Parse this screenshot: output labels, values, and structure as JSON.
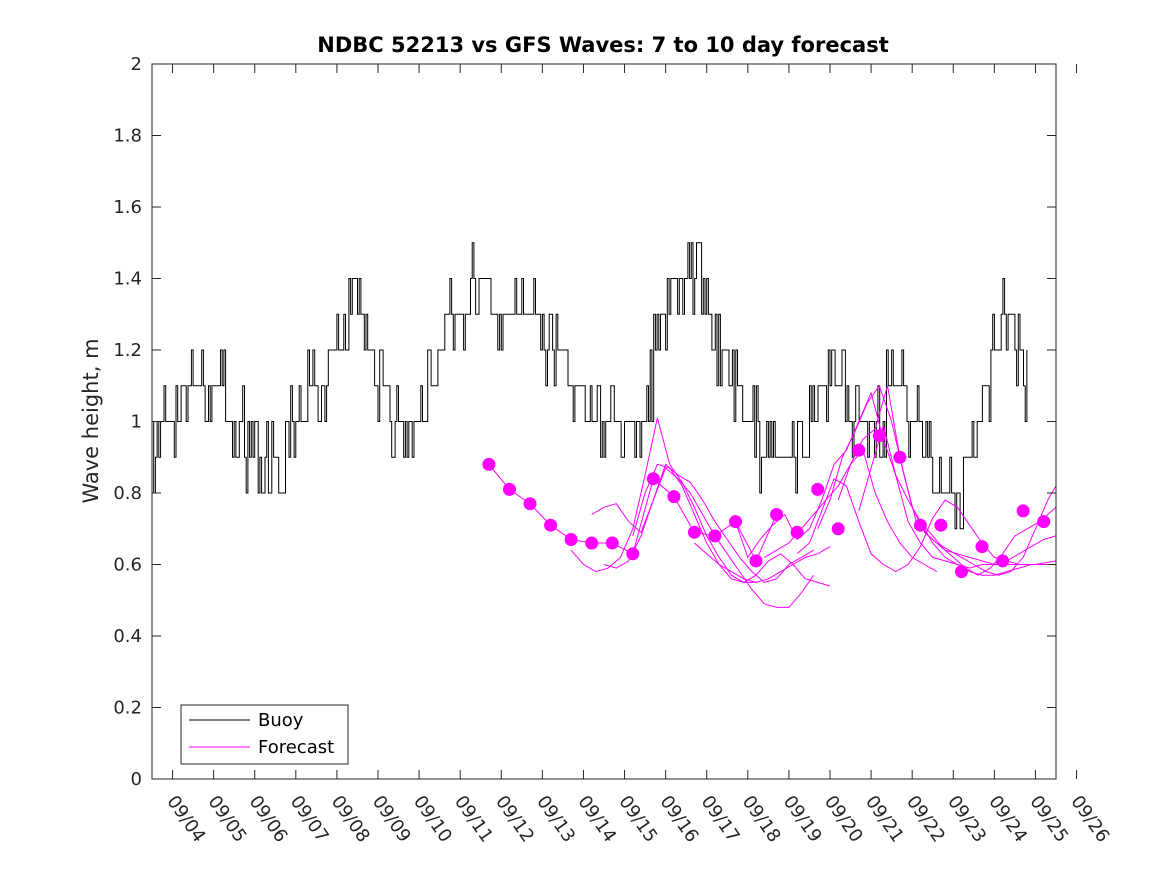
{
  "chart_data": {
    "type": "line",
    "title": "NDBC 52213 vs GFS Waves: 7 to 10 day forecast",
    "xlabel": "",
    "ylabel": "Wave height, m",
    "ylim": [
      0,
      2
    ],
    "yticks": [
      0,
      0.2,
      0.4,
      0.6,
      0.8,
      1,
      1.2,
      1.4,
      1.6,
      1.8,
      2
    ],
    "ytick_labels": [
      "0",
      "0.2",
      "0.4",
      "0.6",
      "0.8",
      "1",
      "1.2",
      "1.4",
      "1.6",
      "1.8",
      "2"
    ],
    "xlim_days": [
      -0.5,
      21.5
    ],
    "x_tick_labels": [
      "09/04",
      "09/05",
      "09/06",
      "09/07",
      "09/08",
      "09/09",
      "09/10",
      "09/11",
      "09/12",
      "09/13",
      "09/14",
      "09/15",
      "09/16",
      "09/17",
      "09/18",
      "09/19",
      "09/20",
      "09/21",
      "09/22",
      "09/23",
      "09/24",
      "09/25",
      "09/26"
    ],
    "x_unit": "days since 09/04 00:00",
    "legend": {
      "position": "bottom-left",
      "entries": [
        "Buoy",
        "Forecast"
      ]
    },
    "colors": {
      "buoy": "#000000",
      "forecast": "#ff00ff",
      "axes": "#262626"
    },
    "series": [
      {
        "name": "Buoy",
        "color": "#000000",
        "step": 0.1,
        "x": [
          -0.5,
          0,
          0.5,
          1,
          1.5,
          2,
          2.5,
          3,
          3.5,
          4,
          4.5,
          5,
          5.5,
          6,
          6.5,
          7,
          7.5,
          8,
          8.5,
          9,
          9.5,
          10,
          10.5,
          11,
          11.5,
          12,
          12.5,
          13,
          13.5,
          14,
          14.5,
          15,
          15.5,
          16,
          16.5,
          17,
          17.5,
          18,
          18.5,
          19,
          19.5,
          20,
          20.3,
          20.5,
          20.8
        ],
        "values": [
          0.9,
          1.0,
          1.1,
          1.1,
          1.0,
          0.9,
          0.85,
          1.0,
          1.1,
          1.2,
          1.3,
          1.1,
          1.0,
          0.95,
          1.2,
          1.3,
          1.4,
          1.3,
          1.3,
          1.25,
          1.2,
          1.05,
          1.0,
          0.95,
          1.05,
          1.35,
          1.45,
          1.3,
          1.15,
          1.0,
          0.9,
          0.85,
          1.0,
          1.15,
          1.0,
          0.95,
          1.1,
          1.0,
          0.85,
          0.8,
          0.9,
          1.2,
          1.3,
          1.25,
          1.1
        ]
      },
      {
        "name": "Forecast",
        "color": "#ff00ff",
        "runs": [
          {
            "x": [
              7.7,
              8.2,
              8.7,
              9.2,
              9.7,
              10.2,
              10.7,
              11.2,
              11.7,
              12.2,
              12.7,
              13.2,
              13.7,
              14.2,
              14.7
            ],
            "values": [
              0.88,
              0.81,
              0.77,
              0.71,
              0.67,
              0.66,
              0.66,
              0.63,
              0.84,
              0.79,
              0.69,
              0.68,
              0.72,
              0.61,
              0.74
            ]
          },
          {
            "x": [
              10.2,
              10.5,
              10.8,
              11.1,
              11.4,
              11.7,
              12.0,
              12.3,
              12.6,
              12.9,
              13.2,
              13.5,
              13.8,
              14.1,
              14.4,
              14.7,
              15.0,
              15.3,
              15.6
            ],
            "values": [
              0.74,
              0.76,
              0.77,
              0.72,
              0.69,
              0.78,
              0.88,
              0.85,
              0.83,
              0.78,
              0.72,
              0.67,
              0.62,
              0.58,
              0.55,
              0.56,
              0.6,
              0.62,
              0.64
            ]
          },
          {
            "x": [
              10.5,
              10.8,
              11.1,
              11.4,
              11.7,
              12.0,
              12.3,
              12.6,
              12.9,
              13.2,
              13.5,
              13.8,
              14.1,
              14.4,
              14.7,
              15.0,
              15.3,
              15.6
            ],
            "values": [
              0.6,
              0.59,
              0.61,
              0.68,
              0.78,
              0.87,
              0.84,
              0.8,
              0.74,
              0.68,
              0.63,
              0.58,
              0.53,
              0.49,
              0.48,
              0.48,
              0.52,
              0.57
            ]
          },
          {
            "x": [
              9.7,
              10.0,
              10.3,
              10.6,
              10.9,
              11.2,
              11.5,
              11.8,
              12.1,
              12.4,
              12.7,
              13.0,
              13.3,
              13.6,
              13.9,
              14.2
            ],
            "values": [
              0.64,
              0.6,
              0.58,
              0.59,
              0.62,
              0.7,
              0.85,
              1.01,
              0.88,
              0.83,
              0.76,
              0.68,
              0.62,
              0.57,
              0.55,
              0.55
            ]
          },
          {
            "x": [
              11.2,
              11.5,
              11.8,
              12.1,
              12.4,
              12.7,
              13.0,
              13.3,
              13.6,
              13.9,
              14.2,
              14.5,
              14.8,
              15.1,
              15.4,
              15.7,
              16.0
            ],
            "values": [
              0.68,
              0.8,
              0.88,
              0.87,
              0.82,
              0.74,
              0.66,
              0.6,
              0.56,
              0.55,
              0.57,
              0.61,
              0.63,
              0.6,
              0.56,
              0.55,
              0.54
            ]
          },
          {
            "x": [
              13.7,
              14.0,
              14.3,
              14.6,
              14.9,
              15.2,
              15.5,
              15.8,
              16.1,
              16.4,
              16.7,
              17.0,
              17.3,
              17.6,
              17.9,
              18.2,
              18.5,
              18.8,
              19.1,
              19.4,
              19.7,
              20.0,
              20.3,
              20.6,
              20.9,
              21.2,
              21.5
            ],
            "values": [
              0.72,
              0.62,
              0.67,
              0.71,
              0.74,
              0.67,
              0.7,
              0.78,
              0.88,
              0.92,
              1.0,
              1.08,
              0.95,
              0.85,
              0.72,
              0.66,
              0.62,
              0.61,
              0.6,
              0.59,
              0.6,
              0.6,
              0.6,
              0.6,
              0.6,
              0.6,
              0.6
            ]
          },
          {
            "x": [
              15.7,
              16.0,
              16.3,
              16.6,
              16.9,
              17.2,
              17.5,
              17.8,
              18.1,
              18.4,
              18.7,
              19.0,
              19.3,
              19.6,
              19.9,
              20.2,
              20.5,
              20.8,
              21.1,
              21.4,
              21.5
            ],
            "values": [
              0.7,
              0.78,
              0.9,
              0.97,
              1.05,
              1.1,
              1.0,
              0.85,
              0.72,
              0.68,
              0.65,
              0.62,
              0.59,
              0.57,
              0.59,
              0.63,
              0.68,
              0.7,
              0.72,
              0.75,
              0.76
            ]
          },
          {
            "x": [
              16.2,
              16.5,
              16.8,
              17.1,
              17.4,
              17.7,
              18.0,
              18.3,
              18.6,
              18.9,
              19.2,
              19.5,
              19.8,
              20.1,
              20.4,
              20.7,
              21.0,
              21.3,
              21.5
            ],
            "values": [
              0.78,
              0.88,
              0.95,
              0.98,
              1.1,
              0.9,
              0.76,
              0.69,
              0.66,
              0.64,
              0.62,
              0.6,
              0.58,
              0.57,
              0.58,
              0.62,
              0.7,
              0.78,
              0.82
            ]
          },
          {
            "x": [
              16.7,
              17.0,
              17.3,
              17.6,
              17.9,
              18.2,
              18.5,
              18.8,
              19.1,
              19.4,
              19.7,
              20.0,
              20.3,
              20.6,
              20.9,
              21.2,
              21.5
            ],
            "values": [
              0.75,
              0.87,
              0.99,
              0.85,
              0.78,
              0.72,
              0.68,
              0.64,
              0.63,
              0.62,
              0.61,
              0.6,
              0.61,
              0.63,
              0.65,
              0.67,
              0.68
            ]
          },
          {
            "x": [
              15.2,
              15.5,
              15.8,
              16.1,
              16.4,
              16.7,
              17.0,
              17.3,
              17.6,
              17.9,
              18.2,
              18.5,
              18.8,
              19.1,
              19.4,
              19.7,
              20.0,
              20.3,
              20.6,
              21.0,
              21.5
            ],
            "values": [
              0.63,
              0.66,
              0.75,
              0.84,
              0.82,
              0.72,
              0.63,
              0.6,
              0.58,
              0.6,
              0.65,
              0.73,
              0.78,
              0.76,
              0.71,
              0.66,
              0.62,
              0.61,
              0.6,
              0.6,
              0.61
            ]
          },
          {
            "x": [
              14.4,
              14.7,
              15.0,
              15.3,
              15.6,
              15.9,
              16.2,
              16.5,
              16.8,
              17.1,
              17.4,
              17.7,
              18.0,
              18.3,
              18.6
            ],
            "values": [
              0.62,
              0.64,
              0.66,
              0.7,
              0.74,
              0.78,
              0.82,
              0.88,
              0.92,
              0.8,
              0.72,
              0.66,
              0.62,
              0.6,
              0.58
            ]
          },
          {
            "x": [
              12.7,
              13.0,
              13.3,
              13.6,
              13.9,
              14.2,
              14.5,
              14.8,
              15.1,
              15.4,
              15.7,
              16.0
            ],
            "values": [
              0.66,
              0.63,
              0.6,
              0.58,
              0.56,
              0.55,
              0.56,
              0.58,
              0.6,
              0.62,
              0.63,
              0.65
            ]
          },
          {
            "x": [
              18.2,
              18.5,
              18.8,
              19.1,
              19.4,
              19.7,
              20.0,
              20.3,
              20.6,
              20.9,
              21.2,
              21.5
            ],
            "values": [
              0.72,
              0.66,
              0.62,
              0.6,
              0.58,
              0.57,
              0.57,
              0.58,
              0.59,
              0.6,
              0.6,
              0.6
            ]
          }
        ],
        "markers": {
          "x": [
            7.7,
            8.2,
            8.7,
            9.2,
            9.7,
            10.2,
            10.7,
            11.2,
            11.7,
            12.2,
            12.7,
            13.2,
            13.7,
            14.2,
            14.7,
            15.2,
            15.7,
            16.2,
            16.7,
            17.2,
            17.7,
            18.2,
            18.7,
            19.2,
            19.7,
            20.2,
            20.7,
            21.2
          ],
          "values": [
            0.88,
            0.81,
            0.77,
            0.71,
            0.67,
            0.66,
            0.66,
            0.63,
            0.84,
            0.79,
            0.69,
            0.68,
            0.72,
            0.61,
            0.74,
            0.69,
            0.81,
            0.7,
            0.92,
            0.96,
            0.9,
            0.71,
            0.71,
            0.58,
            0.65,
            0.61,
            0.75,
            0.72
          ]
        }
      }
    ]
  }
}
